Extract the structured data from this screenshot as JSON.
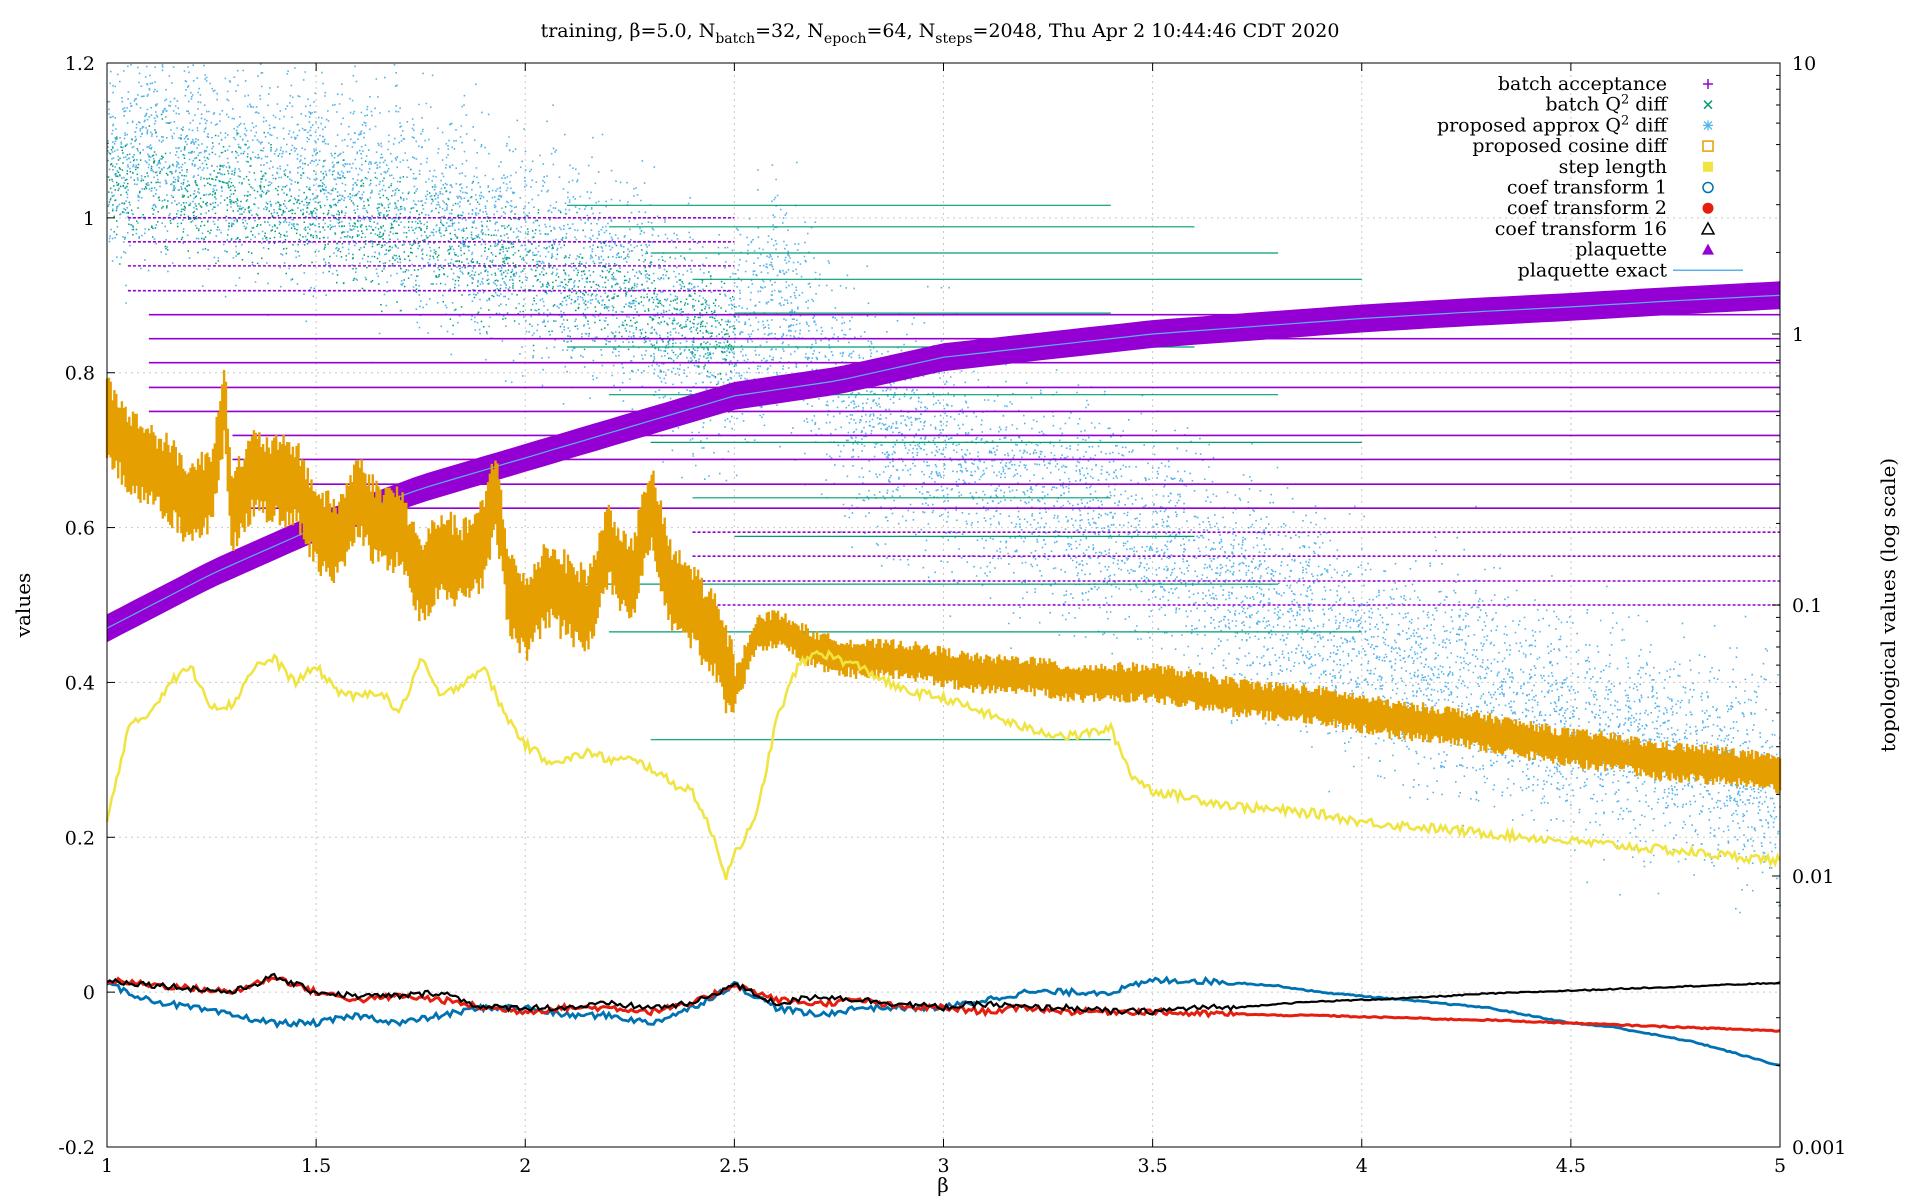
{
  "chart_data": {
    "type": "scatter",
    "title": {
      "prefix": "training, β=5.0, N",
      "batch_sub": "batch",
      "batch_val": "=32, N",
      "epoch_sub": "epoch",
      "epoch_val": "=64, N",
      "steps_sub": "steps",
      "steps_val": "=2048, Thu Apr  2 10:44:46 CDT 2020"
    },
    "xlabel": "β",
    "ylabel": "values",
    "y2label": "topological values (log scale)",
    "xlim": [
      1,
      5
    ],
    "ylim": [
      -0.2,
      1.2
    ],
    "y2lim": [
      0.001,
      10
    ],
    "y2_scale": "log",
    "grid": true,
    "legend_position": "top-right",
    "x_ticks": [
      "1",
      "1.5",
      "2",
      "2.5",
      "3",
      "3.5",
      "4",
      "4.5",
      "5"
    ],
    "x_tick_values": [
      1,
      1.5,
      2,
      2.5,
      3,
      3.5,
      4,
      4.5,
      5
    ],
    "y_ticks": [
      "-0.2",
      "0",
      "0.2",
      "0.4",
      "0.6",
      "0.8",
      "1",
      "1.2"
    ],
    "y_tick_values": [
      -0.2,
      0,
      0.2,
      0.4,
      0.6,
      0.8,
      1,
      1.2
    ],
    "y2_ticks": [
      "0.001",
      "0.01",
      "0.1",
      "1",
      "10"
    ],
    "y2_tick_values": [
      0.001,
      0.01,
      0.1,
      1,
      10
    ],
    "series": [
      {
        "name": "batch acceptance",
        "marker": "+",
        "color": "#9400d3",
        "levels": [
          1.0,
          0.969,
          0.938,
          0.906,
          0.875,
          0.844,
          0.813,
          0.781,
          0.75,
          0.719,
          0.688,
          0.656,
          0.625,
          0.594,
          0.563,
          0.531,
          0.5
        ],
        "trend_x": [
          1,
          1.5,
          2,
          2.5,
          3,
          3.5,
          4,
          4.5,
          5
        ],
        "trend_y": [
          0.47,
          0.6,
          0.69,
          0.77,
          0.82,
          0.85,
          0.87,
          0.885,
          0.9
        ]
      },
      {
        "name": "batch Q2 diff",
        "label_main": "batch Q",
        "label_sup": "2",
        "label_rest": " diff",
        "marker": "x",
        "color": "#009e73",
        "levels_y2": [
          3.0,
          2.5,
          2.0,
          1.6,
          1.2,
          0.9,
          0.6,
          0.4,
          0.25,
          0.18,
          0.12,
          0.08,
          0.032
        ]
      },
      {
        "name": "proposed approx Q2 diff",
        "label_main": "proposed approx Q",
        "label_sup": "2",
        "label_rest": " diff",
        "marker": "*",
        "color": "#56b4e9",
        "trend_x": [
          1,
          1.25,
          1.5,
          1.75,
          2,
          2.25,
          2.45,
          2.6,
          2.8,
          3,
          3.25,
          3.5,
          3.75,
          4,
          4.25,
          4.5,
          4.75,
          5
        ],
        "trend_y2": [
          5.0,
          4.6,
          3.8,
          3.0,
          2.1,
          1.5,
          0.8,
          1.4,
          0.5,
          0.35,
          0.25,
          0.18,
          0.11,
          0.07,
          0.05,
          0.038,
          0.03,
          0.022
        ]
      },
      {
        "name": "proposed cosine diff",
        "marker": "square-open",
        "color": "#e69f00",
        "x": [
          1,
          1.05,
          1.1,
          1.15,
          1.2,
          1.25,
          1.28,
          1.3,
          1.35,
          1.4,
          1.45,
          1.5,
          1.55,
          1.6,
          1.65,
          1.7,
          1.75,
          1.8,
          1.85,
          1.9,
          1.93,
          1.96,
          2,
          2.05,
          2.1,
          2.15,
          2.2,
          2.25,
          2.3,
          2.35,
          2.4,
          2.45,
          2.5,
          2.55,
          2.6,
          2.7,
          2.8,
          2.9,
          3,
          3.1,
          3.2,
          3.3,
          3.4,
          3.5,
          3.6,
          3.7,
          3.8,
          3.9,
          4,
          4.1,
          4.2,
          4.3,
          4.4,
          4.5,
          4.6,
          4.7,
          4.8,
          4.9,
          5
        ],
        "y": [
          0.74,
          0.7,
          0.68,
          0.66,
          0.63,
          0.65,
          0.76,
          0.62,
          0.67,
          0.66,
          0.66,
          0.6,
          0.58,
          0.64,
          0.6,
          0.6,
          0.53,
          0.57,
          0.55,
          0.58,
          0.65,
          0.52,
          0.48,
          0.53,
          0.51,
          0.49,
          0.58,
          0.52,
          0.63,
          0.52,
          0.5,
          0.46,
          0.39,
          0.46,
          0.47,
          0.44,
          0.43,
          0.43,
          0.42,
          0.41,
          0.41,
          0.4,
          0.4,
          0.4,
          0.39,
          0.38,
          0.375,
          0.37,
          0.36,
          0.35,
          0.345,
          0.335,
          0.325,
          0.315,
          0.31,
          0.3,
          0.295,
          0.29,
          0.28
        ]
      },
      {
        "name": "step length",
        "marker": "square-filled",
        "color": "#f0e442",
        "x": [
          1,
          1.05,
          1.1,
          1.15,
          1.2,
          1.25,
          1.3,
          1.35,
          1.4,
          1.45,
          1.5,
          1.55,
          1.6,
          1.65,
          1.7,
          1.75,
          1.8,
          1.85,
          1.9,
          1.95,
          2,
          2.05,
          2.1,
          2.15,
          2.2,
          2.25,
          2.3,
          2.35,
          2.4,
          2.45,
          2.48,
          2.5,
          2.55,
          2.6,
          2.65,
          2.7,
          2.8,
          2.9,
          3,
          3.1,
          3.2,
          3.3,
          3.4,
          3.45,
          3.5,
          3.6,
          3.7,
          3.8,
          3.9,
          4,
          4.1,
          4.2,
          4.3,
          4.4,
          4.5,
          4.6,
          4.7,
          4.8,
          4.9,
          5
        ],
        "y": [
          0.22,
          0.34,
          0.36,
          0.4,
          0.42,
          0.37,
          0.37,
          0.42,
          0.43,
          0.4,
          0.42,
          0.39,
          0.38,
          0.39,
          0.36,
          0.43,
          0.38,
          0.4,
          0.42,
          0.36,
          0.32,
          0.3,
          0.3,
          0.31,
          0.3,
          0.3,
          0.29,
          0.27,
          0.26,
          0.2,
          0.15,
          0.18,
          0.22,
          0.35,
          0.42,
          0.44,
          0.42,
          0.39,
          0.38,
          0.36,
          0.34,
          0.33,
          0.34,
          0.28,
          0.26,
          0.25,
          0.24,
          0.235,
          0.23,
          0.22,
          0.215,
          0.21,
          0.205,
          0.2,
          0.195,
          0.19,
          0.185,
          0.18,
          0.175,
          0.17
        ]
      },
      {
        "name": "coef transform 1",
        "marker": "circle-open",
        "color": "#0072b2",
        "x": [
          1,
          1.1,
          1.2,
          1.3,
          1.4,
          1.5,
          1.6,
          1.7,
          1.8,
          1.9,
          2,
          2.1,
          2.2,
          2.3,
          2.4,
          2.5,
          2.6,
          2.7,
          2.8,
          2.9,
          3,
          3.1,
          3.2,
          3.3,
          3.4,
          3.5,
          3.6,
          3.7,
          3.8,
          3.9,
          4,
          4.1,
          4.2,
          4.3,
          4.4,
          4.5,
          4.6,
          4.7,
          4.8,
          4.9,
          5
        ],
        "y": [
          0.01,
          -0.01,
          -0.02,
          -0.03,
          -0.04,
          -0.04,
          -0.03,
          -0.04,
          -0.03,
          -0.02,
          -0.02,
          -0.03,
          -0.03,
          -0.04,
          -0.02,
          0.01,
          -0.02,
          -0.03,
          -0.02,
          -0.02,
          -0.02,
          -0.01,
          0.0,
          0.0,
          0.0,
          0.015,
          0.015,
          0.012,
          0.008,
          0.0,
          -0.005,
          -0.01,
          -0.015,
          -0.02,
          -0.03,
          -0.04,
          -0.045,
          -0.055,
          -0.065,
          -0.08,
          -0.095
        ]
      },
      {
        "name": "coef transform 2",
        "marker": "circle-filled",
        "color": "#e51e10",
        "x": [
          1,
          1.1,
          1.2,
          1.3,
          1.4,
          1.5,
          1.6,
          1.7,
          1.8,
          1.9,
          2,
          2.1,
          2.2,
          2.3,
          2.4,
          2.5,
          2.6,
          2.7,
          2.8,
          2.9,
          3,
          3.1,
          3.2,
          3.3,
          3.4,
          3.5,
          3.6,
          3.7,
          3.8,
          3.9,
          4,
          4.1,
          4.2,
          4.3,
          4.4,
          4.5,
          4.6,
          4.7,
          4.8,
          4.9,
          5
        ],
        "y": [
          0.015,
          0.01,
          0.005,
          0.0,
          0.02,
          0.0,
          -0.01,
          -0.005,
          -0.01,
          -0.02,
          -0.025,
          -0.02,
          -0.02,
          -0.025,
          -0.015,
          0.01,
          -0.01,
          -0.015,
          -0.01,
          -0.02,
          -0.02,
          -0.025,
          -0.02,
          -0.025,
          -0.025,
          -0.025,
          -0.028,
          -0.028,
          -0.03,
          -0.03,
          -0.032,
          -0.033,
          -0.035,
          -0.036,
          -0.038,
          -0.04,
          -0.042,
          -0.044,
          -0.046,
          -0.048,
          -0.05
        ]
      },
      {
        "name": "coef transform 16",
        "marker": "triangle-open",
        "color": "#000000",
        "x": [
          1,
          1.1,
          1.2,
          1.3,
          1.4,
          1.5,
          1.6,
          1.7,
          1.8,
          1.9,
          2,
          2.1,
          2.2,
          2.3,
          2.4,
          2.5,
          2.6,
          2.7,
          2.8,
          2.9,
          3,
          3.1,
          3.2,
          3.3,
          3.4,
          3.5,
          3.6,
          3.7,
          3.8,
          3.9,
          4,
          4.1,
          4.2,
          4.3,
          4.4,
          4.5,
          4.6,
          4.7,
          4.8,
          4.9,
          5
        ],
        "y": [
          0.015,
          0.01,
          0.005,
          0.0,
          0.02,
          0.0,
          -0.005,
          -0.005,
          0.0,
          -0.02,
          -0.02,
          -0.02,
          -0.015,
          -0.02,
          -0.015,
          0.01,
          -0.015,
          -0.005,
          -0.01,
          -0.015,
          -0.02,
          -0.015,
          -0.02,
          -0.02,
          -0.025,
          -0.025,
          -0.02,
          -0.02,
          -0.015,
          -0.012,
          -0.01,
          -0.008,
          -0.005,
          -0.002,
          0.0,
          0.002,
          0.004,
          0.006,
          0.008,
          0.01,
          0.012
        ]
      },
      {
        "name": "plaquette",
        "marker": "triangle-filled",
        "color": "#9400d3",
        "x": [
          1,
          1.25,
          1.5,
          1.75,
          2,
          2.25,
          2.5,
          2.75,
          3,
          3.25,
          3.5,
          3.75,
          4,
          4.25,
          4.5,
          4.75,
          5
        ],
        "y": [
          0.47,
          0.54,
          0.6,
          0.65,
          0.69,
          0.73,
          0.77,
          0.79,
          0.82,
          0.835,
          0.85,
          0.86,
          0.87,
          0.878,
          0.885,
          0.893,
          0.9
        ]
      },
      {
        "name": "plaquette exact",
        "marker": "line",
        "color": "#56b4e9",
        "x": [
          1,
          1.25,
          1.5,
          1.75,
          2,
          2.25,
          2.5,
          2.75,
          3,
          3.25,
          3.5,
          3.75,
          4,
          4.25,
          4.5,
          4.75,
          5
        ],
        "y": [
          0.47,
          0.54,
          0.6,
          0.65,
          0.69,
          0.73,
          0.77,
          0.79,
          0.82,
          0.835,
          0.85,
          0.86,
          0.87,
          0.878,
          0.885,
          0.893,
          0.9
        ]
      }
    ]
  }
}
